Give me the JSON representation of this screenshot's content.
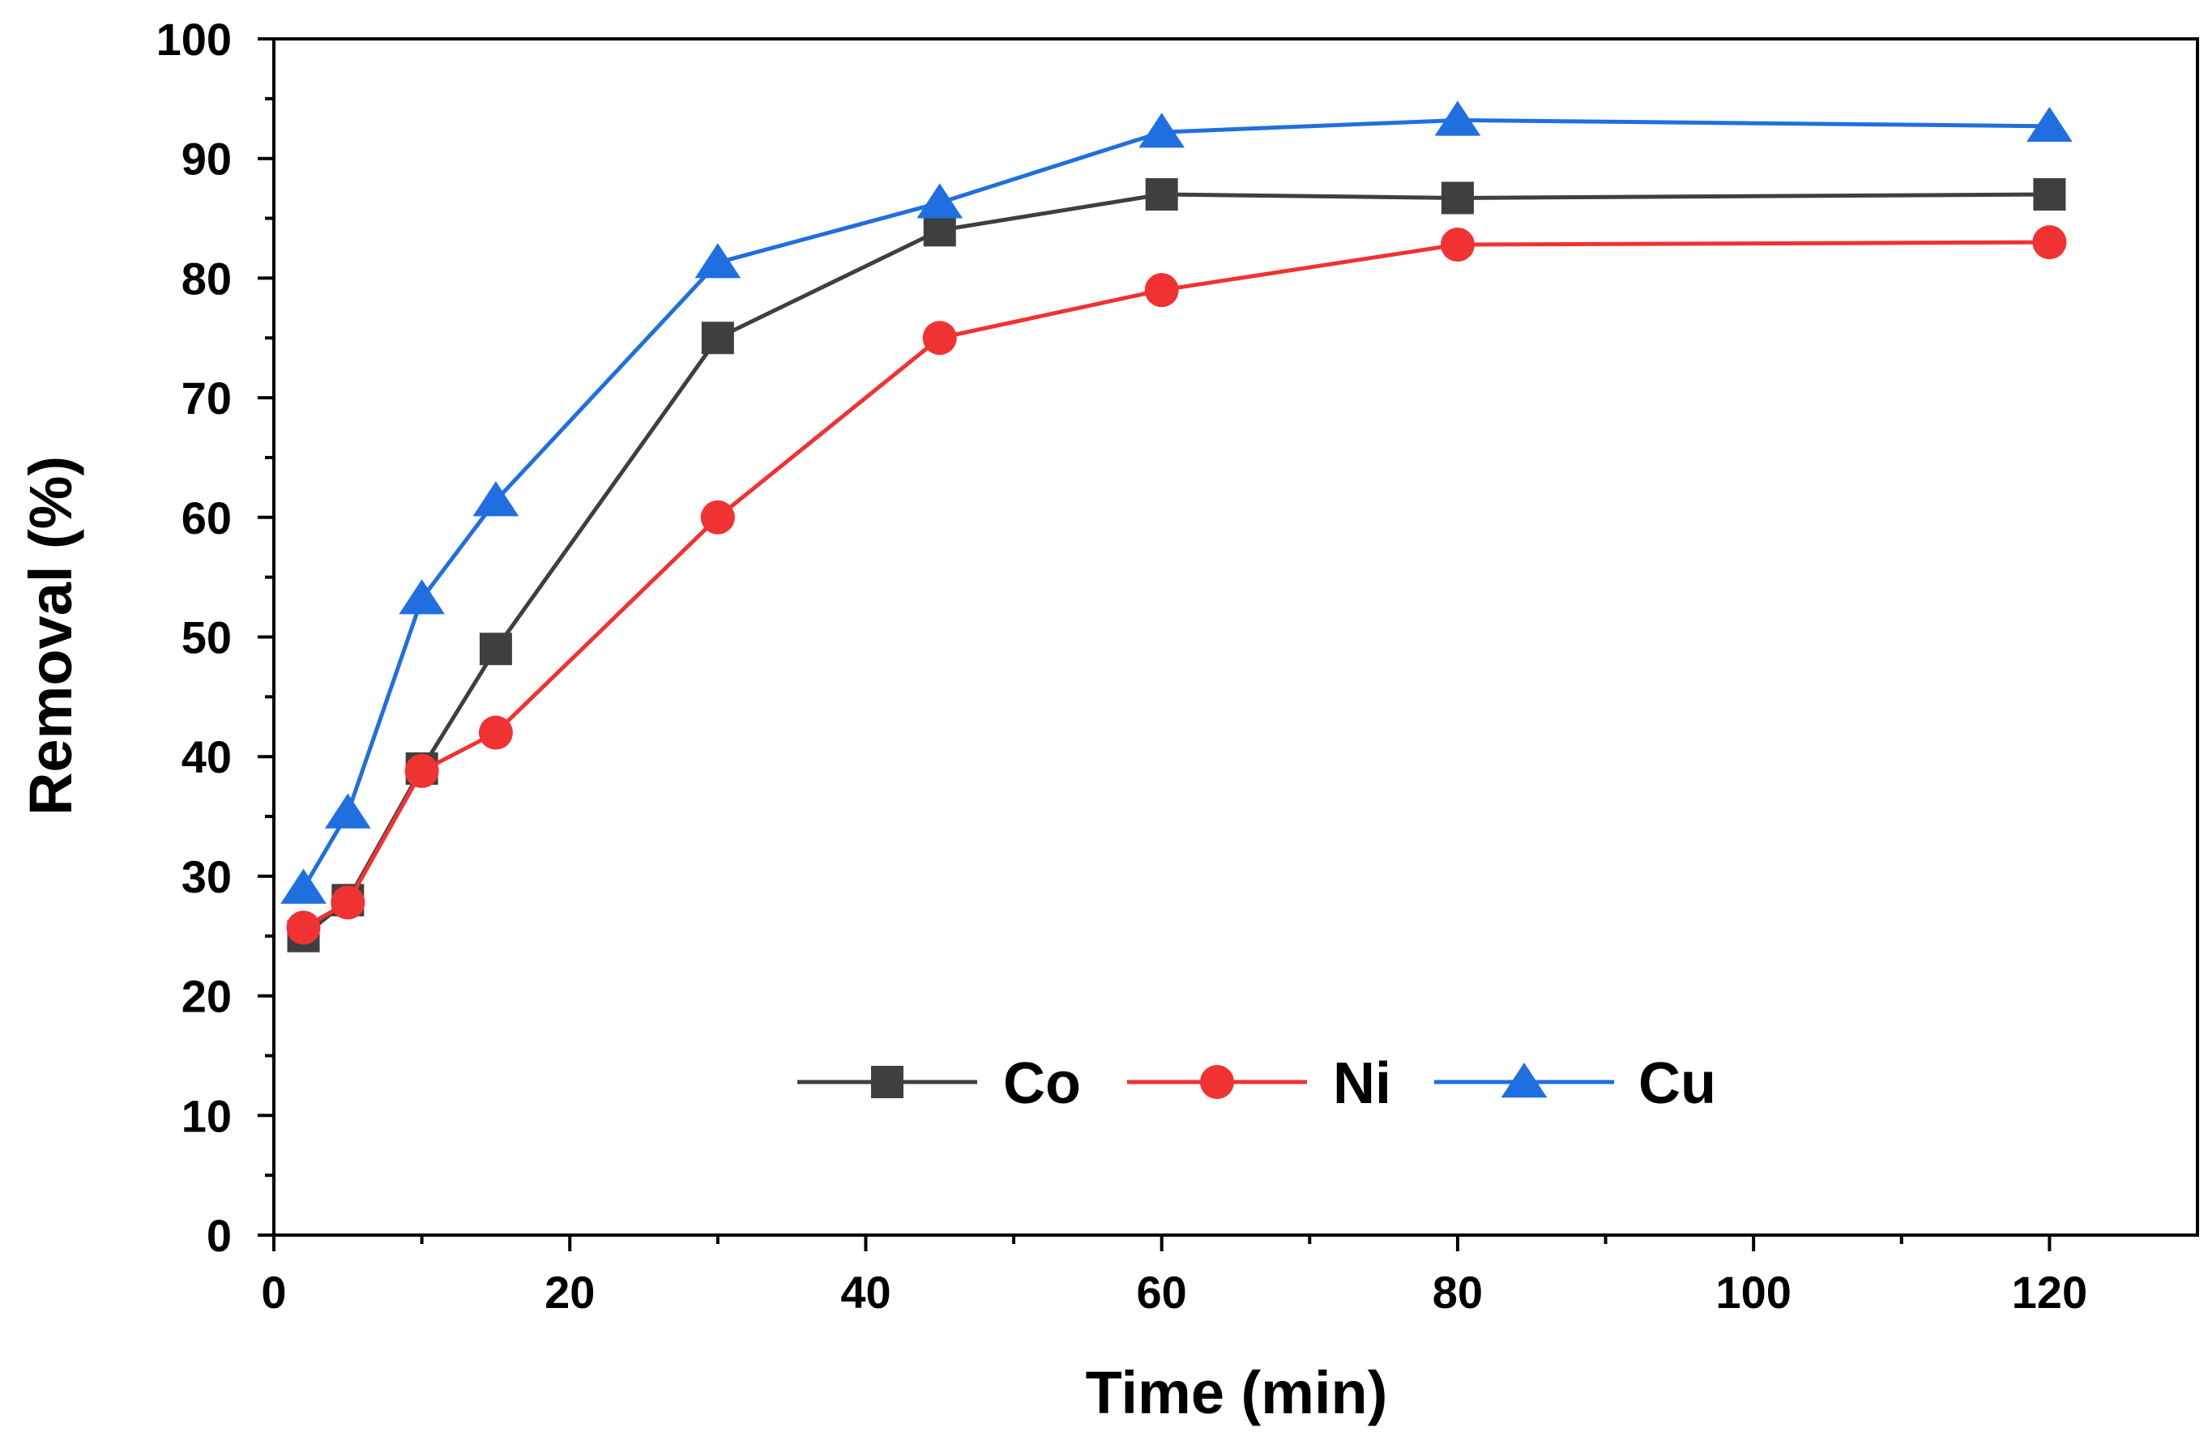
{
  "chart_data": {
    "type": "line",
    "title": "",
    "xlabel": "Time (min)",
    "ylabel": "Removal (%)",
    "xlim": [
      0,
      130
    ],
    "ylim": [
      0,
      100
    ],
    "x_ticks": [
      0,
      20,
      40,
      60,
      80,
      100,
      120
    ],
    "y_ticks": [
      0,
      10,
      20,
      30,
      40,
      50,
      60,
      70,
      80,
      90,
      100
    ],
    "x_tick_labels": [
      "0",
      "20",
      "40",
      "60",
      "80",
      "100",
      "120"
    ],
    "y_tick_labels": [
      "0",
      "10",
      "20",
      "30",
      "40",
      "50",
      "60",
      "70",
      "80",
      "90",
      "100"
    ],
    "grid": false,
    "legend_position": "bottom-center",
    "x": [
      2,
      5,
      10,
      15,
      30,
      45,
      60,
      80,
      120
    ],
    "series": [
      {
        "name": "Co",
        "color": "#3f3f3f",
        "marker": "square",
        "values": [
          25,
          28,
          39,
          49,
          75,
          84,
          87,
          86.7,
          87
        ]
      },
      {
        "name": "Ni",
        "color": "#f03232",
        "marker": "circle",
        "values": [
          25.7,
          27.8,
          38.8,
          42,
          60,
          75,
          79,
          82.8,
          83
        ]
      },
      {
        "name": "Cu",
        "color": "#1f6fe0",
        "marker": "triangle",
        "values": [
          29,
          35.3,
          53.2,
          61.4,
          81.3,
          86.3,
          92.2,
          93.2,
          92.7
        ]
      }
    ]
  }
}
